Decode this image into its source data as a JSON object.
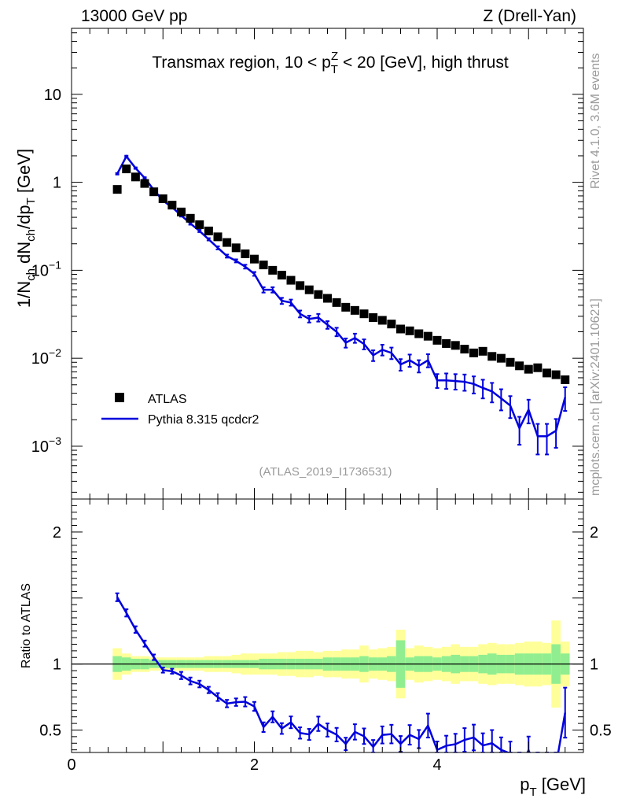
{
  "header": {
    "left": "13000 GeV pp",
    "right": "Z (Drell-Yan)"
  },
  "side": {
    "rivet": "Rivet 4.1.0,  3.6M events",
    "mcplots": "mcplots.cern.ch [arXiv:2401.10621]"
  },
  "chart_data": {
    "type": "scatter",
    "title_parts": {
      "pre": "Transmax region, 10 < p",
      "sup": "Z",
      "sub": "T",
      "post": " < 20 [GeV], high thrust"
    },
    "watermark": "(ATLAS_2019_I1736531)",
    "ylabel_parts": [
      "1/N",
      "ch",
      " dN",
      "ch",
      "/dp",
      "T",
      " [GeV]"
    ],
    "xlabel_parts": [
      "p",
      "T",
      " [GeV]"
    ],
    "ratio_ylabel": "Ratio to ATLAS",
    "xlim": [
      0,
      5.6
    ],
    "ylim_log10": [
      -3.6,
      1.75
    ],
    "ratio_ylim": [
      0.33,
      2.25
    ],
    "x_ticks": [
      {
        "value": 0,
        "label": "0"
      },
      {
        "value": 2,
        "label": "2"
      },
      {
        "value": 4,
        "label": "4"
      }
    ],
    "y_ticks": [
      {
        "exp": 1,
        "label": "10"
      },
      {
        "exp": 0,
        "label": "1"
      },
      {
        "exp": -1,
        "label": "10",
        "sup": "−1"
      },
      {
        "exp": -2,
        "label": "10",
        "sup": "−2"
      },
      {
        "exp": -3,
        "label": "10",
        "sup": "−3"
      }
    ],
    "ratio_ticks": [
      {
        "value": 2,
        "label": "2"
      },
      {
        "value": 1,
        "label": "1"
      },
      {
        "value": 0.5,
        "label": "0.5"
      }
    ],
    "legend": [
      {
        "name": "ATLAS",
        "marker": "square",
        "color": "#000000"
      },
      {
        "name": "Pythia 8.315 qcdcr2",
        "marker": "line",
        "color": "#0000dd"
      }
    ],
    "colors": {
      "data": "#000000",
      "mc": "#0000dd",
      "band_stat": "#90ee90",
      "band_total": "#ffff99"
    },
    "x": [
      0.5,
      0.6,
      0.7,
      0.8,
      0.9,
      1.0,
      1.1,
      1.2,
      1.3,
      1.4,
      1.5,
      1.6,
      1.7,
      1.8,
      1.9,
      2.0,
      2.1,
      2.2,
      2.3,
      2.4,
      2.5,
      2.6,
      2.7,
      2.8,
      2.9,
      3.0,
      3.1,
      3.2,
      3.3,
      3.4,
      3.5,
      3.6,
      3.7,
      3.8,
      3.9,
      4.0,
      4.1,
      4.2,
      4.3,
      4.4,
      4.5,
      4.6,
      4.7,
      4.8,
      4.9,
      5.0,
      5.1,
      5.2,
      5.3,
      5.4
    ],
    "atlas": [
      0.83,
      1.42,
      1.15,
      0.97,
      0.78,
      0.65,
      0.55,
      0.46,
      0.39,
      0.33,
      0.28,
      0.24,
      0.207,
      0.18,
      0.154,
      0.134,
      0.115,
      0.1,
      0.088,
      0.077,
      0.067,
      0.06,
      0.053,
      0.048,
      0.043,
      0.038,
      0.035,
      0.032,
      0.029,
      0.027,
      0.0245,
      0.0215,
      0.0205,
      0.019,
      0.0178,
      0.016,
      0.0147,
      0.014,
      0.0127,
      0.0115,
      0.012,
      0.0105,
      0.01,
      0.009,
      0.0082,
      0.0075,
      0.0078,
      0.0068,
      0.0065,
      0.0057
    ],
    "mc": [
      1.25,
      1.97,
      1.45,
      1.12,
      0.82,
      0.62,
      0.52,
      0.42,
      0.34,
      0.28,
      0.225,
      0.18,
      0.145,
      0.128,
      0.11,
      0.091,
      0.06,
      0.06,
      0.045,
      0.043,
      0.032,
      0.028,
      0.029,
      0.024,
      0.02,
      0.015,
      0.017,
      0.0145,
      0.0108,
      0.0125,
      0.0115,
      0.0085,
      0.0095,
      0.0082,
      0.0095,
      0.0056,
      0.0056,
      0.0055,
      0.0054,
      0.0051,
      0.0046,
      0.0042,
      0.0035,
      0.0029,
      0.0016,
      0.0026,
      0.0013,
      0.0013,
      0.0015,
      0.0036
    ],
    "mc_rel_err": [
      0.02,
      0.02,
      0.02,
      0.02,
      0.02,
      0.02,
      0.02,
      0.03,
      0.03,
      0.03,
      0.03,
      0.04,
      0.04,
      0.04,
      0.05,
      0.05,
      0.07,
      0.07,
      0.08,
      0.08,
      0.09,
      0.09,
      0.1,
      0.1,
      0.11,
      0.12,
      0.12,
      0.13,
      0.14,
      0.14,
      0.15,
      0.15,
      0.16,
      0.16,
      0.17,
      0.18,
      0.2,
      0.2,
      0.21,
      0.22,
      0.24,
      0.25,
      0.27,
      0.28,
      0.35,
      0.3,
      0.38,
      0.38,
      0.36,
      0.3
    ],
    "band_stat": [
      0.06,
      0.05,
      0.04,
      0.04,
      0.03,
      0.03,
      0.03,
      0.03,
      0.03,
      0.03,
      0.03,
      0.03,
      0.03,
      0.03,
      0.03,
      0.03,
      0.04,
      0.04,
      0.04,
      0.04,
      0.04,
      0.04,
      0.04,
      0.05,
      0.05,
      0.05,
      0.05,
      0.06,
      0.05,
      0.05,
      0.06,
      0.18,
      0.05,
      0.06,
      0.06,
      0.05,
      0.06,
      0.07,
      0.06,
      0.06,
      0.07,
      0.08,
      0.07,
      0.07,
      0.08,
      0.08,
      0.08,
      0.08,
      0.15,
      0.08
    ],
    "band_total": [
      0.12,
      0.08,
      0.06,
      0.06,
      0.05,
      0.05,
      0.05,
      0.05,
      0.05,
      0.05,
      0.06,
      0.06,
      0.06,
      0.07,
      0.08,
      0.08,
      0.08,
      0.08,
      0.09,
      0.09,
      0.1,
      0.1,
      0.09,
      0.1,
      0.1,
      0.11,
      0.11,
      0.14,
      0.11,
      0.12,
      0.13,
      0.26,
      0.12,
      0.14,
      0.13,
      0.12,
      0.13,
      0.15,
      0.13,
      0.13,
      0.15,
      0.16,
      0.15,
      0.15,
      0.16,
      0.17,
      0.17,
      0.16,
      0.33,
      0.17
    ]
  }
}
